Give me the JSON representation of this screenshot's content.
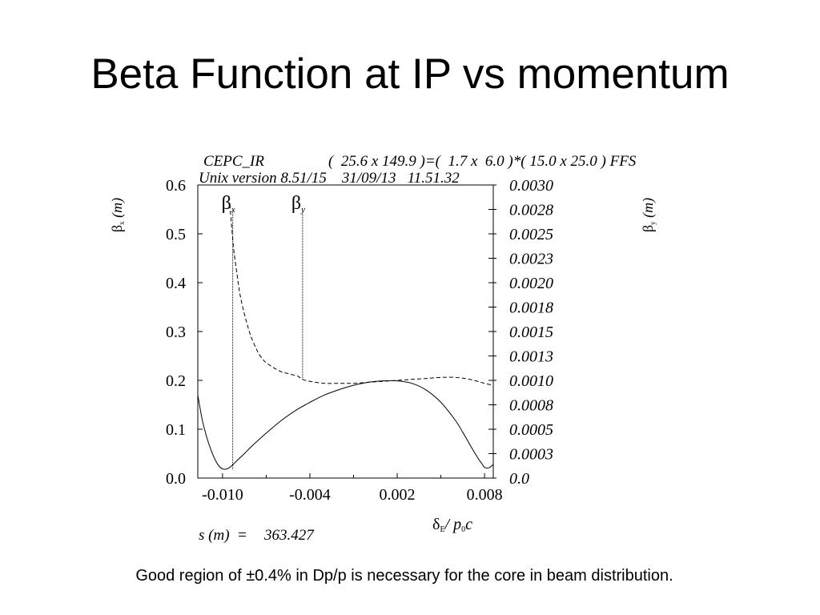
{
  "slide": {
    "title": "Beta Function at IP vs momentum",
    "caption": "Good region of ±0.4% in Dp/p is necessary for the core in beam distribution."
  },
  "plot_header": {
    "line1_left": "CEPC_IR",
    "line1_right": "(  25.6 x 149.9 )=(  1.7 x  6.0 )*( 15.0 x 25.0 ) FFS",
    "line2": "Unix version 8.51/15    31/09/13   11.51.32"
  },
  "footer": {
    "s_label": "s (m)  =",
    "s_value": "363.427"
  },
  "axis_labels": {
    "left": "βx (m)",
    "right": "βy (m)",
    "x": "δE/ p0c"
  },
  "chart_data": {
    "type": "line",
    "x_ticks": [
      "-0.010",
      "-0.004",
      "0.002",
      "0.008"
    ],
    "x_tick_values": [
      -0.01,
      -0.004,
      0.002,
      0.008
    ],
    "xlim": [
      -0.0117,
      0.0086
    ],
    "y_left_ticks": [
      "0.0",
      "0.1",
      "0.2",
      "0.3",
      "0.4",
      "0.5",
      "0.6"
    ],
    "y_left_values": [
      0,
      0.1,
      0.2,
      0.3,
      0.4,
      0.5,
      0.6
    ],
    "ylim_left": [
      0,
      0.6
    ],
    "y_right_ticks": [
      "0.0",
      "0.0003",
      "0.0005",
      "0.0008",
      "0.0010",
      "0.0013",
      "0.0015",
      "0.0018",
      "0.0020",
      "0.0023",
      "0.0025",
      "0.0028",
      "0.0030"
    ],
    "ylim_right": [
      0,
      0.003
    ],
    "grid": false,
    "series": [
      {
        "name": "βx",
        "axis": "left",
        "style": "solid",
        "x": [
          -0.0117,
          -0.0114,
          -0.0111,
          -0.0108,
          -0.0105,
          -0.0102,
          -0.0099,
          -0.0096,
          -0.0093,
          -0.009,
          -0.0085,
          -0.008,
          -0.007,
          -0.006,
          -0.005,
          -0.004,
          -0.003,
          -0.002,
          -0.001,
          0.0,
          0.001,
          0.002,
          0.003,
          0.004,
          0.005,
          0.006,
          0.0065,
          0.007,
          0.0075,
          0.0078,
          0.008,
          0.0083,
          0.0086
        ],
        "y": [
          0.17,
          0.12,
          0.085,
          0.058,
          0.037,
          0.023,
          0.018,
          0.02,
          0.027,
          0.036,
          0.05,
          0.065,
          0.092,
          0.117,
          0.138,
          0.155,
          0.17,
          0.181,
          0.19,
          0.196,
          0.199,
          0.199,
          0.194,
          0.18,
          0.155,
          0.118,
          0.094,
          0.068,
          0.043,
          0.03,
          0.022,
          0.021,
          0.028
        ]
      },
      {
        "name": "βy",
        "axis": "right",
        "style": "dashed",
        "x": [
          -0.0095,
          -0.0094,
          -0.0093,
          -0.0092,
          -0.009,
          -0.0088,
          -0.0085,
          -0.0082,
          -0.008,
          -0.0077,
          -0.0075,
          -0.0072,
          -0.007,
          -0.0065,
          -0.006,
          -0.0055,
          -0.005,
          -0.0048,
          -0.0045,
          -0.004,
          -0.003,
          -0.002,
          -0.001,
          0.0,
          0.001,
          0.002,
          0.003,
          0.004,
          0.005,
          0.006,
          0.007,
          0.008,
          0.0086
        ],
        "y": [
          0.0028,
          0.00262,
          0.00245,
          0.0023,
          0.00208,
          0.00188,
          0.00168,
          0.00152,
          0.00143,
          0.00133,
          0.00127,
          0.00121,
          0.00118,
          0.00113,
          0.00109,
          0.00107,
          0.00105,
          0.00104,
          0.00101,
          0.00099,
          0.00097,
          0.00097,
          0.00097,
          0.00098,
          0.00099,
          0.001,
          0.00101,
          0.00102,
          0.00103,
          0.00103,
          0.00101,
          0.00097,
          0.00095
        ]
      }
    ],
    "annotations": [
      {
        "label": "βx",
        "x": -0.0093
      },
      {
        "label": "βy",
        "x": -0.0045
      }
    ]
  }
}
